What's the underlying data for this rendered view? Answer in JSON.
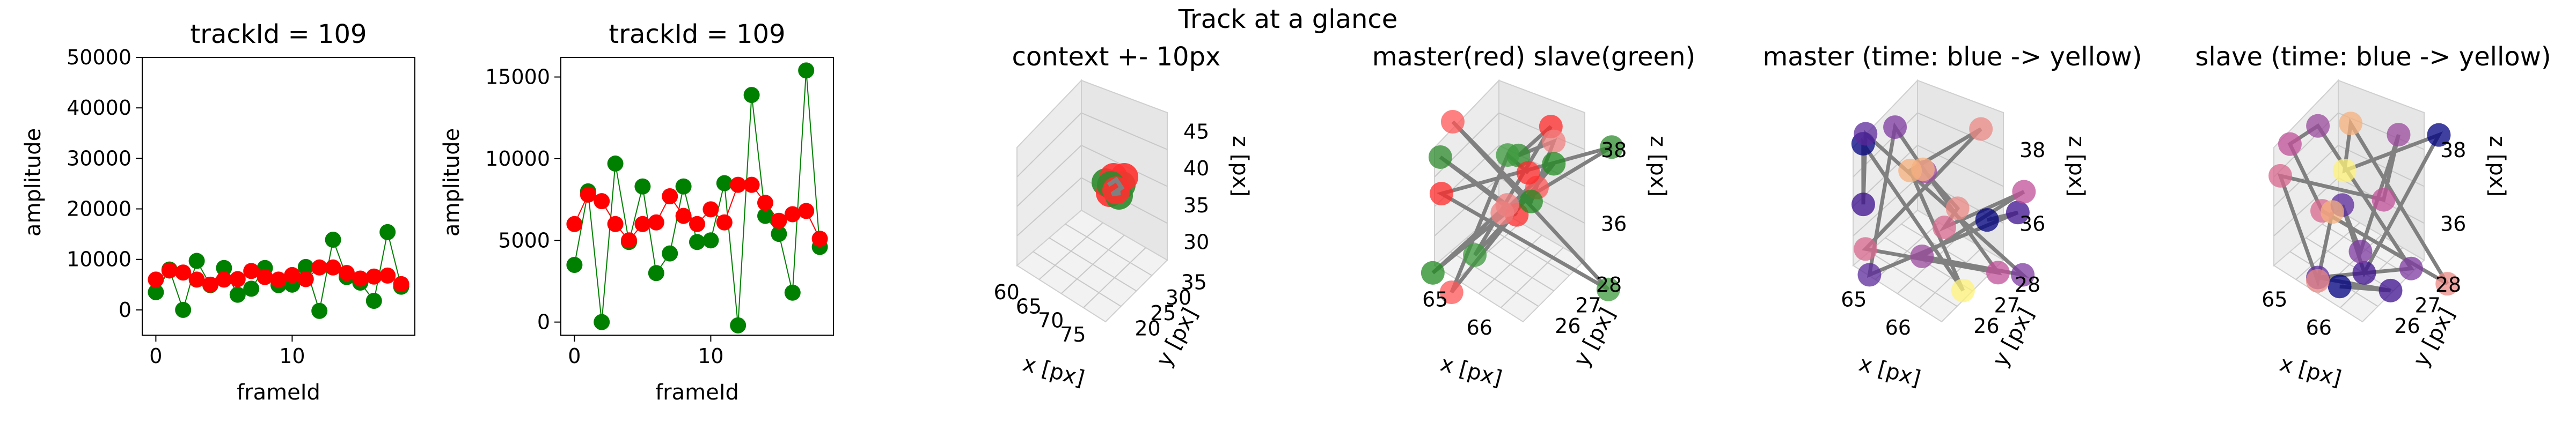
{
  "figure": {
    "suptitle": "Track at a glance"
  },
  "chart_data": [
    {
      "type": "line",
      "title": "trackId = 109",
      "xlabel": "frameId",
      "ylabel": "amplitude",
      "xlim": [
        -1,
        19
      ],
      "ylim": [
        -5000,
        50000
      ],
      "xticks": [
        0,
        10
      ],
      "yticks": [
        0,
        10000,
        20000,
        30000,
        40000,
        50000
      ],
      "series": [
        {
          "color": "#008000",
          "x": [
            0,
            1,
            2,
            3,
            4,
            5,
            6,
            7,
            8,
            9,
            10,
            11,
            12,
            13,
            14,
            15,
            16,
            17,
            18
          ],
          "values": [
            3500,
            8000,
            0,
            9700,
            4900,
            8300,
            3000,
            4200,
            8300,
            4900,
            5000,
            8500,
            -200,
            13900,
            6500,
            5400,
            1800,
            15400,
            4600
          ]
        },
        {
          "color": "#ff0000",
          "x": [
            0,
            1,
            2,
            3,
            4,
            5,
            6,
            7,
            8,
            9,
            10,
            11,
            12,
            13,
            14,
            15,
            16,
            17,
            18
          ],
          "values": [
            6000,
            7800,
            7400,
            6000,
            5000,
            6000,
            6100,
            7700,
            6500,
            6000,
            6900,
            6100,
            8400,
            8400,
            7300,
            6200,
            6600,
            6800,
            5100
          ]
        }
      ]
    },
    {
      "type": "line",
      "title": "trackId = 109",
      "xlabel": "frameId",
      "ylabel": "amplitude",
      "xlim": [
        -1,
        19
      ],
      "ylim": [
        -800,
        16200
      ],
      "xticks": [
        0,
        10
      ],
      "yticks": [
        0,
        5000,
        10000,
        15000
      ],
      "series": [
        {
          "color": "#008000",
          "x": [
            0,
            1,
            2,
            3,
            4,
            5,
            6,
            7,
            8,
            9,
            10,
            11,
            12,
            13,
            14,
            15,
            16,
            17,
            18
          ],
          "values": [
            3500,
            8000,
            0,
            9700,
            4900,
            8300,
            3000,
            4200,
            8300,
            4900,
            5000,
            8500,
            -200,
            13900,
            6500,
            5400,
            1800,
            15400,
            4600
          ]
        },
        {
          "color": "#ff0000",
          "x": [
            0,
            1,
            2,
            3,
            4,
            5,
            6,
            7,
            8,
            9,
            10,
            11,
            12,
            13,
            14,
            15,
            16,
            17,
            18
          ],
          "values": [
            6000,
            7800,
            7400,
            6000,
            5000,
            6000,
            6100,
            7700,
            6500,
            6000,
            6900,
            6100,
            8400,
            8400,
            7300,
            6200,
            6600,
            6800,
            5100
          ]
        }
      ]
    },
    {
      "type": "scatter",
      "title": "context +- 10px",
      "xlabel": "x [px]",
      "ylabel": "y [px]",
      "zlabel": "z [px]",
      "xticks": [
        "60",
        "65",
        "70",
        "75"
      ],
      "yticks": [
        "20",
        "25",
        "30",
        "35"
      ],
      "zticks": [
        "30",
        "35",
        "40",
        "45"
      ]
    },
    {
      "type": "scatter",
      "title": "master(red) slave(green)",
      "xlabel": "x [px]",
      "ylabel": "y [px]",
      "zlabel": "z [px]",
      "xticks": [
        "65",
        "66"
      ],
      "yticks": [
        "26",
        "27",
        "28"
      ],
      "zticks": [
        "36",
        "38"
      ]
    },
    {
      "type": "scatter",
      "title": "master (time: blue -> yellow)",
      "xlabel": "x [px]",
      "ylabel": "y [px]",
      "zlabel": "z [px]",
      "xticks": [
        "65",
        "66"
      ],
      "yticks": [
        "26",
        "27",
        "28"
      ],
      "zticks": [
        "36",
        "38"
      ]
    },
    {
      "type": "scatter",
      "title": "slave (time: blue -> yellow)",
      "xlabel": "x [px]",
      "ylabel": "y [px]",
      "zlabel": "z [px]",
      "xticks": [
        "65",
        "66"
      ],
      "yticks": [
        "26",
        "27",
        "28"
      ],
      "zticks": [
        "36",
        "38"
      ]
    }
  ]
}
